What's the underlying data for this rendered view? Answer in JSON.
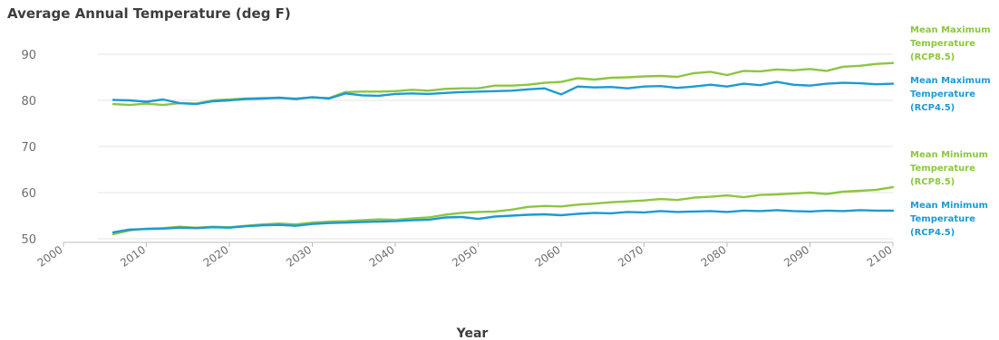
{
  "chart_data": {
    "type": "line",
    "title": "Average Annual Temperature (deg F)",
    "xlabel": "Year",
    "ylabel": "",
    "xlim": [
      2000,
      2100
    ],
    "ylim": [
      50,
      90
    ],
    "xticks": [
      2000,
      2010,
      2020,
      2030,
      2040,
      2050,
      2060,
      2070,
      2080,
      2090,
      2100
    ],
    "yticks": [
      50,
      60,
      70,
      80,
      90
    ],
    "grid": true,
    "legend_position": "right",
    "series": [
      {
        "name": "Mean Maximum Temperature (RCP8.5)",
        "label_lines": [
          "Mean Maximum",
          "Temperature",
          "(RCP8.5)"
        ],
        "color": "#8cc63f",
        "x": [
          2006,
          2008,
          2010,
          2012,
          2014,
          2016,
          2018,
          2020,
          2022,
          2024,
          2026,
          2028,
          2030,
          2032,
          2034,
          2036,
          2038,
          2040,
          2042,
          2044,
          2046,
          2048,
          2050,
          2052,
          2054,
          2056,
          2058,
          2060,
          2062,
          2064,
          2066,
          2068,
          2070,
          2072,
          2074,
          2076,
          2078,
          2080,
          2082,
          2084,
          2086,
          2088,
          2090,
          2092,
          2094,
          2096,
          2098,
          2100
        ],
        "y": [
          79.2,
          79.0,
          79.3,
          79.0,
          79.4,
          79.3,
          80.0,
          80.2,
          80.4,
          80.5,
          80.5,
          80.4,
          80.6,
          80.5,
          81.8,
          81.9,
          81.9,
          82.0,
          82.3,
          82.1,
          82.5,
          82.6,
          82.6,
          83.2,
          83.2,
          83.4,
          83.8,
          84.0,
          84.8,
          84.5,
          84.9,
          85.0,
          85.2,
          85.3,
          85.1,
          85.9,
          86.2,
          85.5,
          86.4,
          86.3,
          86.7,
          86.5,
          86.8,
          86.4,
          87.3,
          87.5,
          87.9,
          88.1
        ]
      },
      {
        "name": "Mean Maximum Temperature (RCP4.5)",
        "label_lines": [
          "Mean Maximum",
          "Temperature",
          "(RCP4.5)"
        ],
        "color": "#1b9ad6",
        "x": [
          2006,
          2008,
          2010,
          2012,
          2014,
          2016,
          2018,
          2020,
          2022,
          2024,
          2026,
          2028,
          2030,
          2032,
          2034,
          2036,
          2038,
          2040,
          2042,
          2044,
          2046,
          2048,
          2050,
          2052,
          2054,
          2056,
          2058,
          2060,
          2062,
          2064,
          2066,
          2068,
          2070,
          2072,
          2074,
          2076,
          2078,
          2080,
          2082,
          2084,
          2086,
          2088,
          2090,
          2092,
          2094,
          2096,
          2098,
          2100
        ],
        "y": [
          80.1,
          80.0,
          79.7,
          80.2,
          79.4,
          79.2,
          79.8,
          80.0,
          80.3,
          80.4,
          80.6,
          80.3,
          80.7,
          80.4,
          81.5,
          81.1,
          81.0,
          81.4,
          81.5,
          81.4,
          81.6,
          81.8,
          81.9,
          82.0,
          82.1,
          82.4,
          82.6,
          81.3,
          83.0,
          82.8,
          82.9,
          82.6,
          83.0,
          83.1,
          82.7,
          83.0,
          83.4,
          83.0,
          83.6,
          83.3,
          84.0,
          83.4,
          83.2,
          83.6,
          83.8,
          83.7,
          83.5,
          83.6
        ]
      },
      {
        "name": "Mean Minimum Temperature (RCP8.5)",
        "label_lines": [
          "Mean Minimum",
          "Temperature",
          "(RCP8.5)"
        ],
        "color": "#8cc63f",
        "x": [
          2006,
          2008,
          2010,
          2012,
          2014,
          2016,
          2018,
          2020,
          2022,
          2024,
          2026,
          2028,
          2030,
          2032,
          2034,
          2036,
          2038,
          2040,
          2042,
          2044,
          2046,
          2048,
          2050,
          2052,
          2054,
          2056,
          2058,
          2060,
          2062,
          2064,
          2066,
          2068,
          2070,
          2072,
          2074,
          2076,
          2078,
          2080,
          2082,
          2084,
          2086,
          2088,
          2090,
          2092,
          2094,
          2096,
          2098,
          2100
        ],
        "y": [
          51.0,
          51.8,
          52.2,
          52.3,
          52.6,
          52.4,
          52.6,
          52.5,
          52.8,
          53.1,
          53.3,
          53.1,
          53.5,
          53.7,
          53.8,
          54.0,
          54.2,
          54.1,
          54.4,
          54.6,
          55.2,
          55.6,
          55.8,
          55.9,
          56.3,
          56.9,
          57.1,
          57.0,
          57.4,
          57.6,
          57.9,
          58.1,
          58.3,
          58.6,
          58.4,
          58.9,
          59.1,
          59.4,
          59.0,
          59.5,
          59.6,
          59.8,
          60.0,
          59.7,
          60.2,
          60.4,
          60.6,
          61.2
        ]
      },
      {
        "name": "Mean Minimum Temperature (RCP4.5)",
        "label_lines": [
          "Mean Minimum",
          "Temperature",
          "(RCP4.5)"
        ],
        "color": "#1b9ad6",
        "x": [
          2006,
          2008,
          2010,
          2012,
          2014,
          2016,
          2018,
          2020,
          2022,
          2024,
          2026,
          2028,
          2030,
          2032,
          2034,
          2036,
          2038,
          2040,
          2042,
          2044,
          2046,
          2048,
          2050,
          2052,
          2054,
          2056,
          2058,
          2060,
          2062,
          2064,
          2066,
          2068,
          2070,
          2072,
          2074,
          2076,
          2078,
          2080,
          2082,
          2084,
          2086,
          2088,
          2090,
          2092,
          2094,
          2096,
          2098,
          2100
        ],
        "y": [
          51.4,
          52.0,
          52.1,
          52.2,
          52.4,
          52.3,
          52.5,
          52.4,
          52.7,
          52.9,
          53.0,
          52.8,
          53.2,
          53.4,
          53.5,
          53.6,
          53.7,
          53.8,
          54.0,
          54.1,
          54.6,
          54.7,
          54.3,
          54.8,
          55.0,
          55.2,
          55.3,
          55.1,
          55.4,
          55.6,
          55.5,
          55.8,
          55.7,
          56.0,
          55.8,
          55.9,
          56.0,
          55.8,
          56.1,
          56.0,
          56.2,
          56.0,
          55.9,
          56.1,
          56.0,
          56.2,
          56.1,
          56.1
        ]
      }
    ]
  }
}
